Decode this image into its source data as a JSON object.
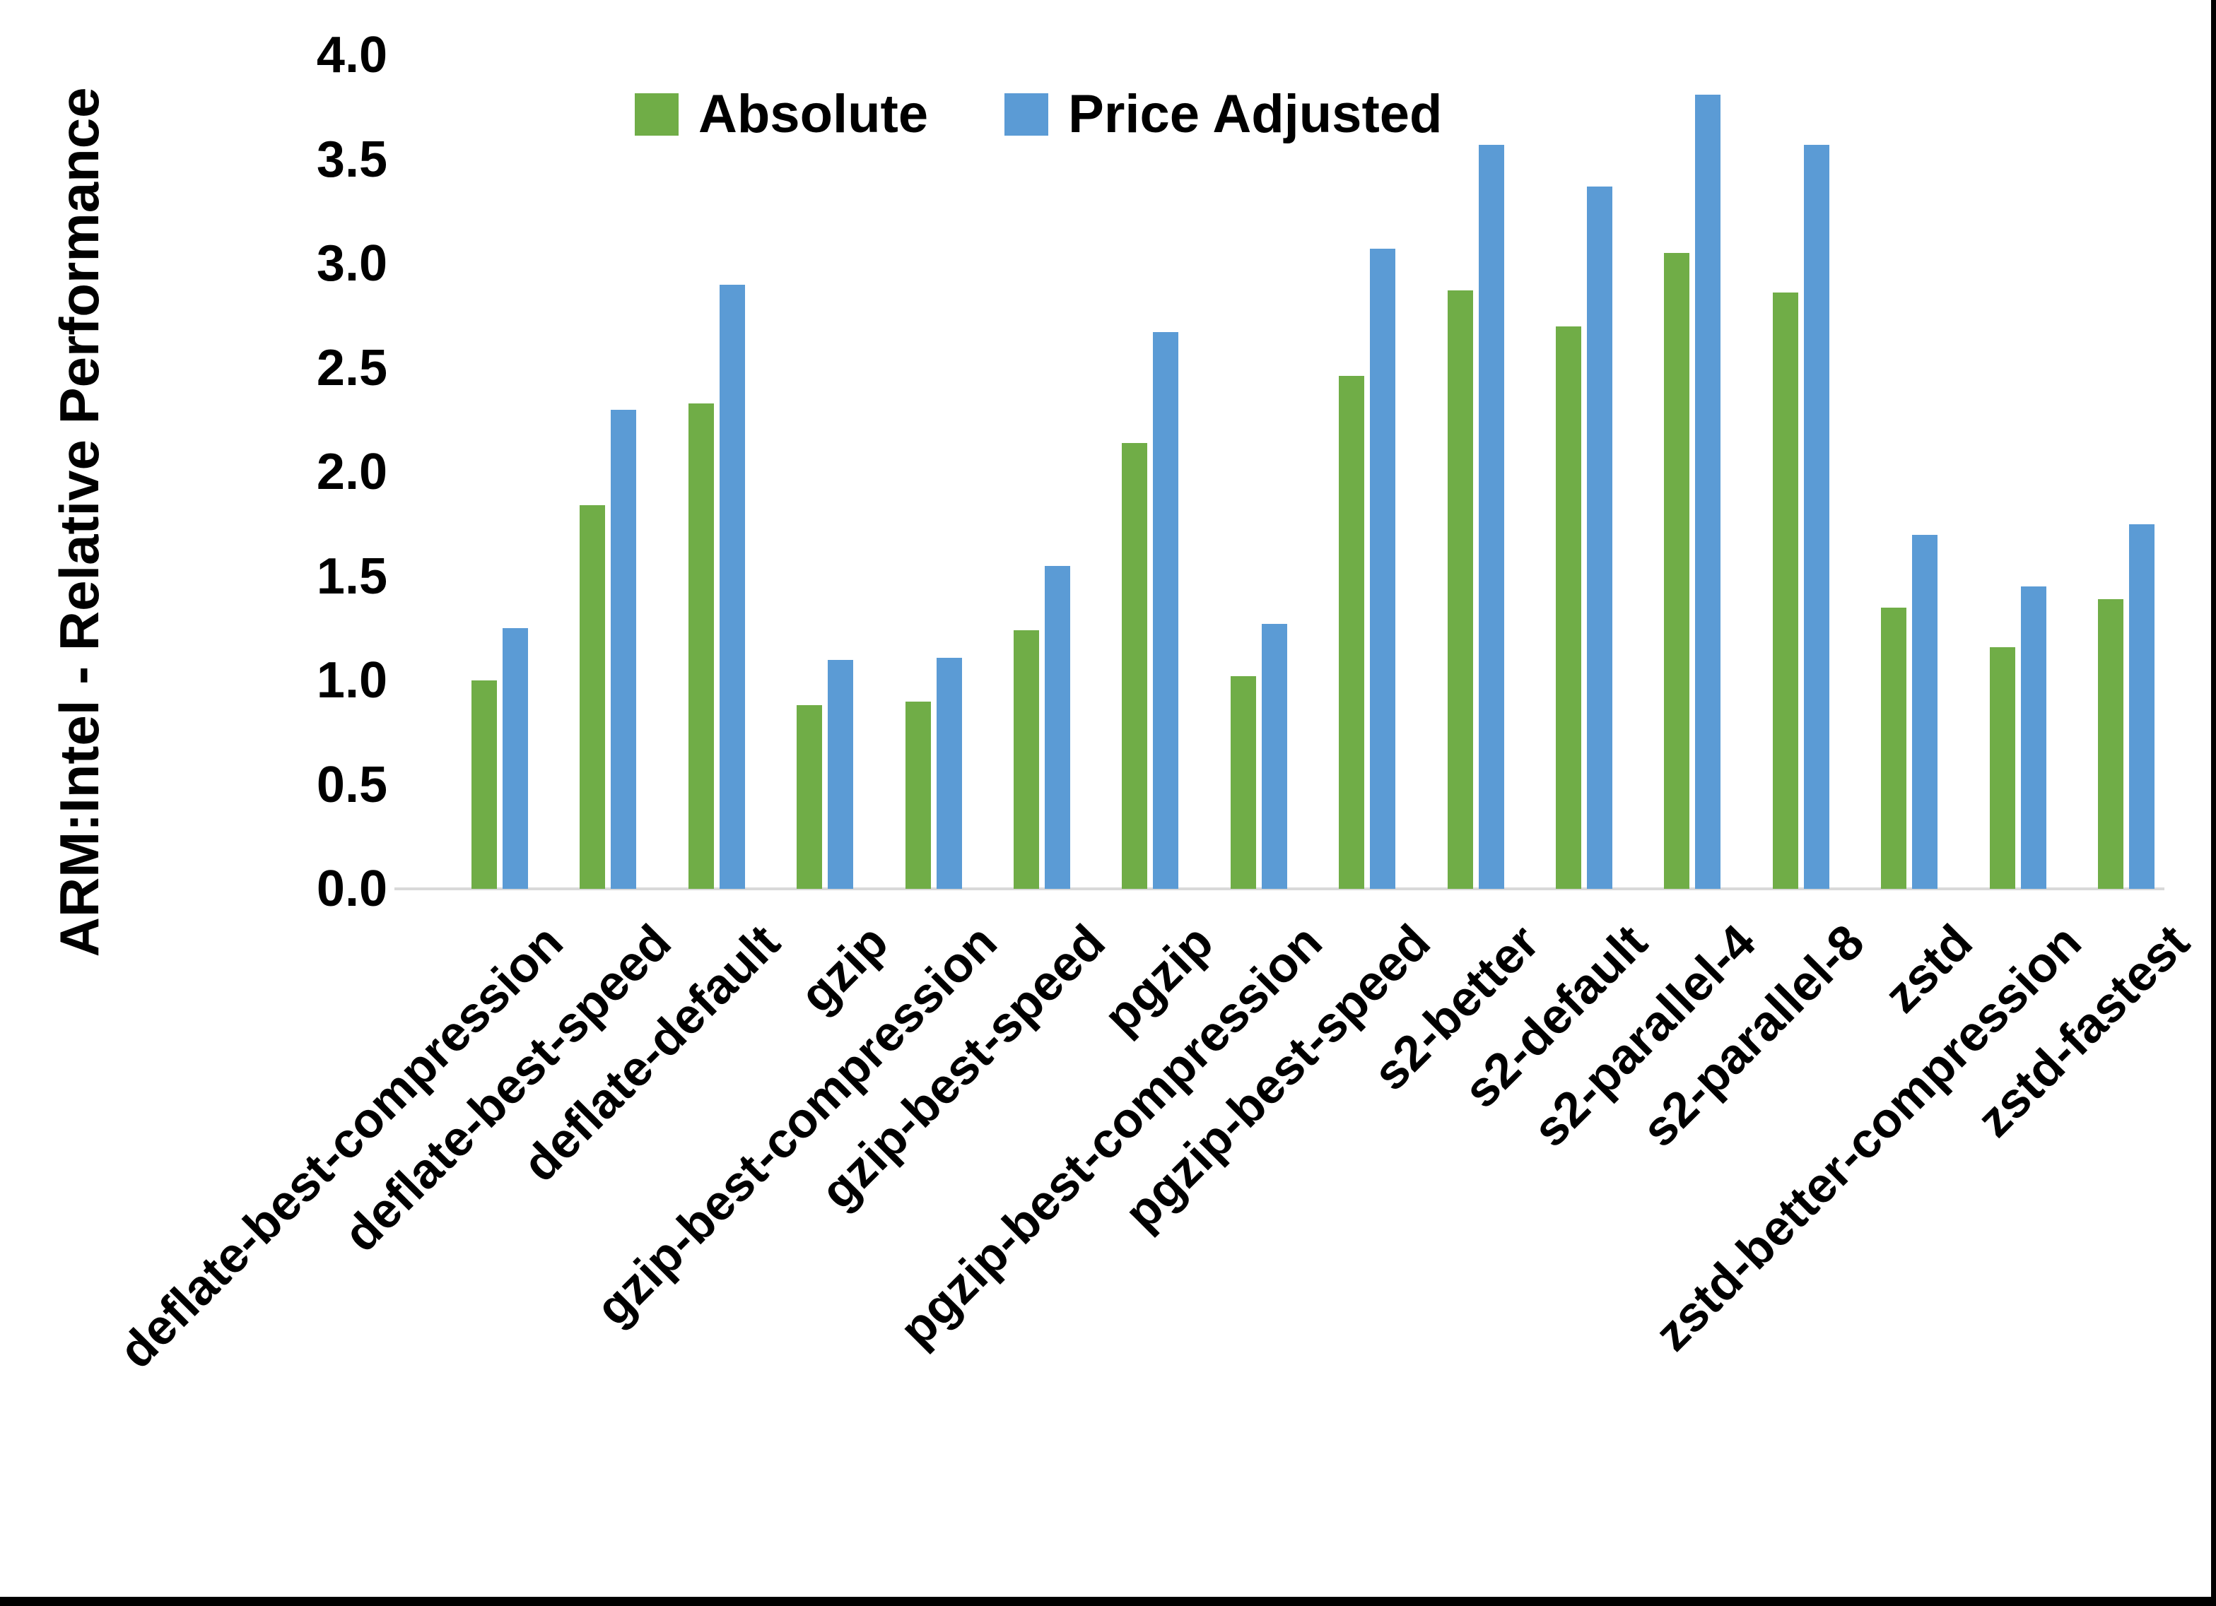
{
  "chart": {
    "y_axis_title": "ARM:Intel - Relative Performance",
    "legend_items": [
      "Absolute",
      "Price Adjusted"
    ]
  },
  "chart_data": {
    "type": "bar",
    "title": "",
    "xlabel": "",
    "ylabel": "ARM:Intel - Relative Performance",
    "ylim": [
      0.0,
      4.0
    ],
    "ytick_step": 0.5,
    "yticks": [
      0.0,
      0.5,
      1.0,
      1.5,
      2.0,
      2.5,
      3.0,
      3.5,
      4.0
    ],
    "grid": false,
    "legend_position": "top",
    "bar_colors_note": "grouped vertical bars, 2 series per category",
    "categories": [
      "deflate-best-compression",
      "deflate-best-speed",
      "deflate-default",
      "gzip",
      "gzip-best-compression",
      "gzip-best-speed",
      "pgzip",
      "pgzip-best-compression",
      "pgzip-best-speed",
      "s2-better",
      "s2-default",
      "s2-parallel-4",
      "s2-parallel-8",
      "zstd",
      "zstd-better-compression",
      "zstd-fastest"
    ],
    "series": [
      {
        "name": "Absolute",
        "color": "#70AD47",
        "values": [
          1.0,
          1.84,
          2.33,
          0.88,
          0.9,
          1.24,
          2.14,
          1.02,
          2.46,
          2.87,
          2.7,
          3.05,
          2.86,
          1.35,
          1.16,
          1.39
        ]
      },
      {
        "name": "Price Adjusted",
        "color": "#5B9BD5",
        "values": [
          1.25,
          2.3,
          2.9,
          1.1,
          1.11,
          1.55,
          2.67,
          1.27,
          3.07,
          3.57,
          3.37,
          3.81,
          3.57,
          1.7,
          1.45,
          1.75
        ]
      }
    ]
  }
}
